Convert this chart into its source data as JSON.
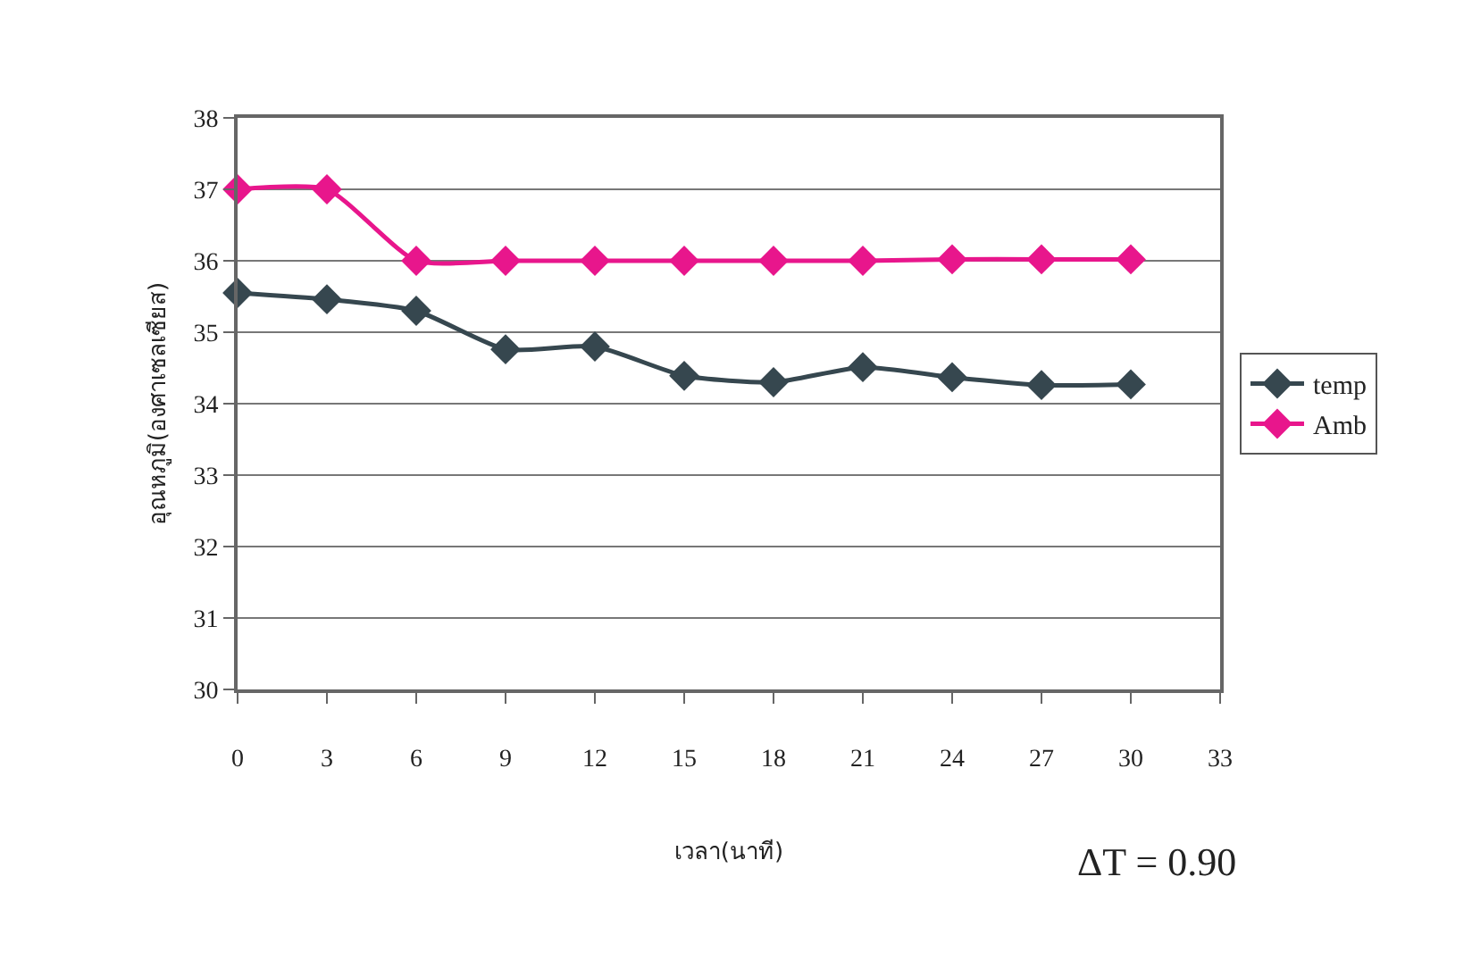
{
  "chart_data": {
    "type": "line",
    "xlabel": "เวลา(นาที)",
    "ylabel": "อุณหภูมิ(องศาเซลเซียส)",
    "x": [
      0,
      3,
      6,
      9,
      12,
      15,
      18,
      21,
      24,
      27,
      30
    ],
    "series": [
      {
        "name": "temp",
        "color": "#36474f",
        "values": [
          35.55,
          35.46,
          35.3,
          34.76,
          34.8,
          34.39,
          34.3,
          34.51,
          34.37,
          34.26,
          34.27
        ]
      },
      {
        "name": "Amb",
        "color": "#e8168c",
        "values": [
          37,
          37,
          36,
          36,
          36,
          36,
          36,
          36,
          36.02,
          36.02,
          36.02
        ]
      }
    ],
    "xlim": [
      0,
      33
    ],
    "xticks": [
      0,
      3,
      6,
      9,
      12,
      15,
      18,
      21,
      24,
      27,
      30,
      33
    ],
    "ylim": [
      30,
      38
    ],
    "yticks": [
      30,
      31,
      32,
      33,
      34,
      35,
      36,
      37,
      38
    ],
    "grid": "y",
    "legend": "right",
    "marker": "diamond",
    "line_style": "solid",
    "annotations": [
      "ΔT = 0.90"
    ]
  }
}
